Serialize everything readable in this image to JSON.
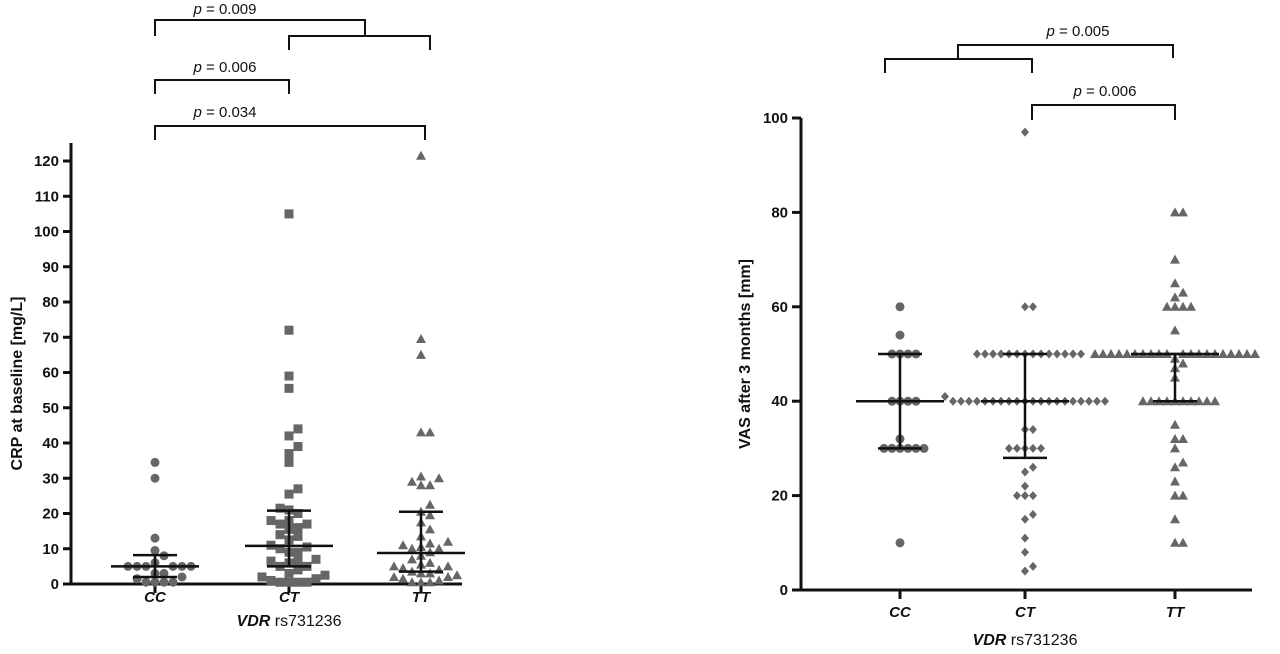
{
  "chart_data": [
    {
      "type": "scatter",
      "ylabel": "CRP at baseline [mg/L]",
      "xlabel_italic": "VDR",
      "xlabel_rest": " rs731236",
      "categories": [
        "CC",
        "CT",
        "TT"
      ],
      "ylim": [
        0,
        120
      ],
      "yticks": [
        0,
        10,
        20,
        30,
        40,
        50,
        60,
        70,
        80,
        90,
        100,
        110,
        120
      ],
      "marker_color": "#666666",
      "markers": [
        "circle",
        "square",
        "triangle"
      ],
      "groups": [
        {
          "name": "CC",
          "values": [
            34.5,
            30,
            13,
            9.5,
            8,
            6,
            5,
            5,
            5,
            5,
            5,
            5,
            3,
            3,
            2,
            1.5,
            0.5,
            0.5,
            0.5,
            0.5
          ],
          "median": 5,
          "q1": 2,
          "q3": 8.2
        },
        {
          "name": "CT",
          "values": [
            105,
            72,
            59,
            55.5,
            44,
            42,
            39,
            37,
            34.5,
            27,
            25.5,
            21.5,
            21,
            20,
            18,
            18,
            17,
            17,
            16,
            15.5,
            14,
            13.5,
            12.5,
            11,
            10.5,
            10,
            9,
            9,
            7,
            6.5,
            6.5,
            6,
            5,
            5,
            4,
            3,
            2.5,
            2,
            1.5,
            1,
            0.5,
            0.5,
            0.5,
            0.5
          ],
          "median": 10.8,
          "q1": 5,
          "q3": 20.8
        },
        {
          "name": "TT",
          "values": [
            121.5,
            69.5,
            65,
            43,
            43,
            30.5,
            30,
            29,
            28,
            28,
            22.5,
            20.5,
            19.5,
            17.5,
            15.5,
            13.5,
            12,
            11.5,
            11,
            10.5,
            10,
            10,
            9,
            8,
            7,
            6,
            5.5,
            5,
            5,
            4.5,
            4,
            3.5,
            3,
            3,
            2.5,
            2,
            2,
            1.5,
            1,
            0.5,
            0.5,
            0.5
          ],
          "median": 8.8,
          "q1": 3.5,
          "q3": 20.5
        }
      ],
      "annotations": [
        {
          "p": "p",
          "text": " = 0.009",
          "groups": [
            "CC",
            "CT-TT"
          ]
        },
        {
          "p": "p",
          "text": " = 0.006",
          "groups": [
            "CC",
            "CT"
          ]
        },
        {
          "p": "p",
          "text": " = 0.034",
          "groups": [
            "CC",
            "TT"
          ]
        }
      ]
    },
    {
      "type": "scatter",
      "ylabel": "VAS after 3 months [mm]",
      "xlabel_italic": "VDR",
      "xlabel_rest": " rs731236",
      "categories": [
        "CC",
        "CT",
        "TT"
      ],
      "ylim": [
        0,
        100
      ],
      "yticks": [
        0,
        20,
        40,
        60,
        80,
        100
      ],
      "marker_color": "#666666",
      "markers": [
        "circle",
        "diamond",
        "triangle"
      ],
      "groups": [
        {
          "name": "CC",
          "values": [
            60,
            54,
            50,
            50,
            50,
            50,
            40,
            40,
            40,
            40,
            32,
            30,
            30,
            30,
            30,
            30,
            30,
            10
          ],
          "median": 40,
          "q1": 30,
          "q3": 50
        },
        {
          "name": "CT",
          "values": [
            97,
            60,
            60,
            50,
            50,
            50,
            50,
            50,
            50,
            50,
            50,
            50,
            50,
            50,
            50,
            50,
            50,
            41,
            40,
            40,
            40,
            40,
            40,
            40,
            40,
            40,
            40,
            40,
            40,
            40,
            40,
            40,
            40,
            40,
            40,
            40,
            40,
            40,
            34,
            34,
            30,
            30,
            30,
            30,
            30,
            26,
            25,
            22,
            20,
            20,
            20,
            16,
            15,
            11,
            8,
            5,
            4
          ],
          "median": 40,
          "q1": 28,
          "q3": 50
        },
        {
          "name": "TT",
          "values": [
            80,
            80,
            70,
            65,
            63,
            62,
            60,
            60,
            60,
            60,
            55,
            50,
            50,
            50,
            50,
            50,
            50,
            50,
            50,
            50,
            50,
            50,
            50,
            50,
            50,
            50,
            50,
            50,
            50,
            50,
            50,
            49,
            48,
            47,
            45,
            40,
            40,
            40,
            40,
            40,
            40,
            40,
            40,
            40,
            40,
            35,
            32,
            32,
            30,
            27,
            26,
            23,
            20,
            20,
            15,
            10,
            10
          ],
          "median": 50,
          "q1": 40,
          "q3": 50
        }
      ],
      "annotations": [
        {
          "p": "p",
          "text": " = 0.005",
          "groups": [
            "CC-CT",
            "TT"
          ]
        },
        {
          "p": "p",
          "text": " = 0.006",
          "groups": [
            "CT",
            "TT"
          ]
        }
      ]
    }
  ]
}
